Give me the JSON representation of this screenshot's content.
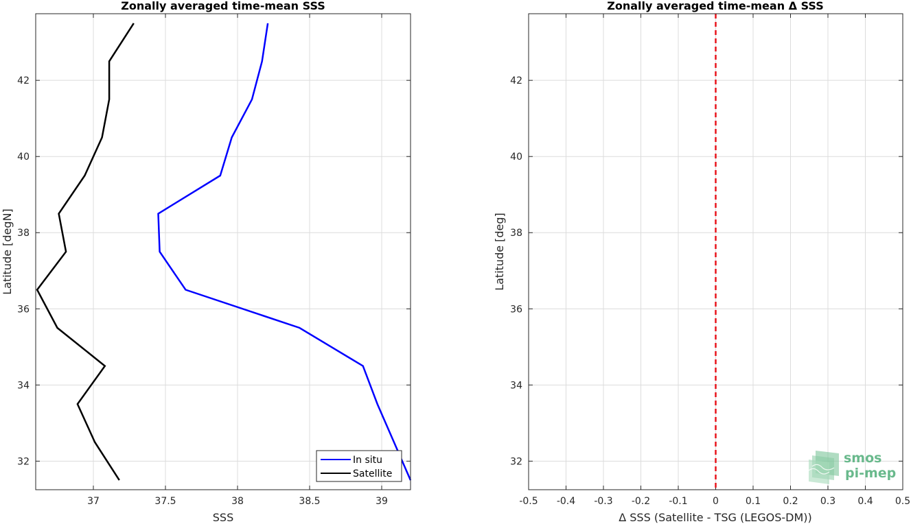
{
  "colors": {
    "in_situ": "#0000ff",
    "satellite": "#000000",
    "zero_line": "#e8141b",
    "grid": "#dcdcdc",
    "logo": "#69b98c"
  },
  "logo": {
    "line1": "smos",
    "line2": "pi-mep"
  },
  "chart_data": [
    {
      "type": "line",
      "title": "Zonally averaged time-mean SSS",
      "xlabel": "SSS",
      "ylabel": "Latitude [degN]",
      "xlim": [
        36.6,
        39.2
      ],
      "ylim": [
        31.25,
        43.75
      ],
      "xticks": [
        37,
        37.5,
        38,
        38.5,
        39
      ],
      "xtick_labels": [
        "37",
        "37.5",
        "38",
        "38.5",
        "39"
      ],
      "yticks": [
        32,
        34,
        36,
        38,
        40,
        42
      ],
      "ytick_labels": [
        "32",
        "34",
        "36",
        "38",
        "40",
        "42"
      ],
      "grid": true,
      "legend_position": "bottom-right",
      "series": [
        {
          "name": "In situ",
          "color": "#0000ff",
          "x": [
            39.24,
            38.97,
            38.87,
            38.43,
            37.64,
            37.46,
            37.45,
            37.88,
            37.96,
            38.1,
            38.17,
            38.21
          ],
          "y": [
            31.5,
            33.5,
            34.5,
            35.5,
            36.5,
            37.5,
            38.5,
            39.5,
            40.5,
            41.5,
            42.5,
            43.5
          ]
        },
        {
          "name": "Satellite",
          "color": "#000000",
          "x": [
            37.18,
            37.01,
            36.89,
            37.08,
            36.75,
            36.61,
            36.81,
            36.76,
            36.94,
            37.06,
            37.11,
            37.11,
            37.28
          ],
          "y": [
            31.5,
            32.5,
            33.5,
            34.5,
            35.5,
            36.5,
            37.5,
            38.5,
            39.5,
            40.5,
            41.5,
            42.5,
            43.5
          ]
        }
      ]
    },
    {
      "type": "line",
      "title": "Zonally averaged time-mean Δ SSS",
      "xlabel": "Δ SSS (Satellite - TSG (LEGOS-DM))",
      "ylabel": "Latitude [deg]",
      "xlim": [
        -0.5,
        0.5
      ],
      "ylim": [
        31.25,
        43.75
      ],
      "xticks": [
        -0.5,
        -0.4,
        -0.3,
        -0.2,
        -0.1,
        0,
        0.1,
        0.2,
        0.3,
        0.4,
        0.5
      ],
      "xtick_labels": [
        "-0.5",
        "-0.4",
        "-0.3",
        "-0.2",
        "-0.1",
        "0",
        "0.1",
        "0.2",
        "0.3",
        "0.4",
        "0.5"
      ],
      "yticks": [
        32,
        34,
        36,
        38,
        40,
        42
      ],
      "ytick_labels": [
        "32",
        "34",
        "36",
        "38",
        "40",
        "42"
      ],
      "grid": true,
      "reference_line": {
        "x": 0,
        "style": "dashed",
        "color": "#e8141b"
      },
      "series": []
    }
  ]
}
